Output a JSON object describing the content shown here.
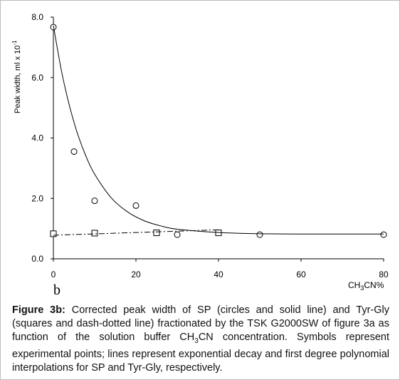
{
  "chart_data": {
    "type": "line",
    "panel_label": "b",
    "x_label": [
      "CH",
      "3",
      "CN%"
    ],
    "y_label": [
      "Peak width,  ml  x  10",
      "-1"
    ],
    "xlim": [
      0,
      80
    ],
    "xticks": [
      0,
      20,
      40,
      60,
      80
    ],
    "ylim": [
      0,
      8
    ],
    "yticks": [
      {
        "value": 0,
        "label": "0.0"
      },
      {
        "value": 2,
        "label": "2.0"
      },
      {
        "value": 4,
        "label": "4.0"
      },
      {
        "value": 6,
        "label": "6.0"
      },
      {
        "value": 8,
        "label": "8.0"
      }
    ],
    "grid": false,
    "series": [
      {
        "name": "SP",
        "color": "#000000",
        "marker": "circle",
        "line": "none",
        "x": [
          0,
          5,
          10,
          20,
          30,
          50,
          80
        ],
        "values": [
          7.67,
          3.55,
          1.92,
          1.76,
          0.8,
          0.8,
          0.8
        ]
      },
      {
        "name": "Tyr-Gly",
        "color": "#000000",
        "marker": "square",
        "line": "none",
        "x": [
          0,
          10,
          25,
          40
        ],
        "values": [
          0.83,
          0.85,
          0.86,
          0.86
        ]
      },
      {
        "name": "SP exponential decay",
        "color": "#000000",
        "marker": "none",
        "line": "solid",
        "x": [
          0,
          2,
          4,
          6,
          8,
          10,
          14,
          18,
          22,
          26,
          30,
          40,
          50,
          60,
          70,
          80
        ],
        "values": [
          7.72,
          6.19,
          5.01,
          4.08,
          3.36,
          2.8,
          2.02,
          1.55,
          1.26,
          1.09,
          0.98,
          0.87,
          0.83,
          0.82,
          0.82,
          0.82
        ]
      },
      {
        "name": "Tyr-Gly first degree polynomial",
        "color": "#000000",
        "marker": "none",
        "line": "dashdot",
        "x": [
          0,
          40
        ],
        "values": [
          0.78,
          0.96
        ]
      }
    ]
  },
  "caption": {
    "label": "Figure 3b:",
    "parts": [
      "Corrected peak width of SP (circles and solid line) and Tyr-Gly (squares and dash-dotted line) fractionated by the TSK G2000SW of figure 3a as function of the solution buffer CH",
      "3",
      "CN concentration. Symbols represent experimental points; lines represent exponential decay and first degree polynomial interpolations for SP and Tyr-Gly, respectively."
    ]
  }
}
